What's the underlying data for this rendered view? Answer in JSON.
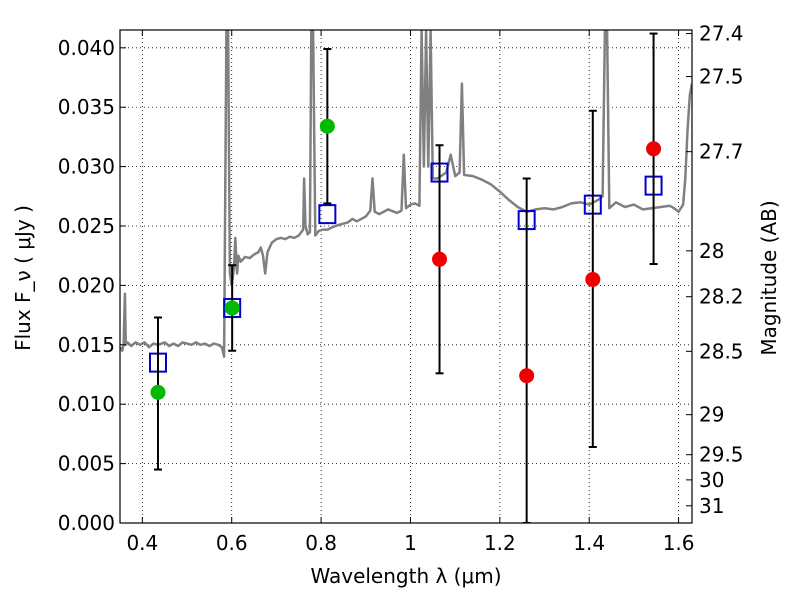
{
  "chart_data": {
    "type": "scatter",
    "xlabel": "Wavelength  λ (μm)",
    "ylabel_left": "Flux  F_ν  ( μJy )",
    "ylabel_right": "Magnitude (AB)",
    "xlim": [
      0.35,
      1.63
    ],
    "ylim": [
      0.0,
      0.0415
    ],
    "grid": true,
    "x_ticks": [
      {
        "v": 0.4,
        "label": "0.4"
      },
      {
        "v": 0.6,
        "label": "0.6"
      },
      {
        "v": 0.8,
        "label": "0.8"
      },
      {
        "v": 1.0,
        "label": "1"
      },
      {
        "v": 1.2,
        "label": "1.2"
      },
      {
        "v": 1.4,
        "label": "1.4"
      },
      {
        "v": 1.6,
        "label": "1.6"
      }
    ],
    "y_ticks": [
      {
        "v": 0.0,
        "label": "0.000"
      },
      {
        "v": 0.005,
        "label": "0.005"
      },
      {
        "v": 0.01,
        "label": "0.010"
      },
      {
        "v": 0.015,
        "label": "0.015"
      },
      {
        "v": 0.02,
        "label": "0.020"
      },
      {
        "v": 0.025,
        "label": "0.025"
      },
      {
        "v": 0.03,
        "label": "0.030"
      },
      {
        "v": 0.035,
        "label": "0.035"
      },
      {
        "v": 0.04,
        "label": "0.040"
      }
    ],
    "mag_ticks": [
      {
        "v": 0.0412,
        "label": "27.4"
      },
      {
        "v": 0.03758,
        "label": "27.5"
      },
      {
        "v": 0.03126,
        "label": "27.7"
      },
      {
        "v": 0.02291,
        "label": "28"
      },
      {
        "v": 0.01905,
        "label": "28.2"
      },
      {
        "v": 0.01445,
        "label": "28.5"
      },
      {
        "v": 0.00912,
        "label": "29"
      },
      {
        "v": 0.00575,
        "label": "29.5"
      },
      {
        "v": 0.00363,
        "label": "30"
      },
      {
        "v": 0.00145,
        "label": "31"
      }
    ],
    "series": [
      {
        "kind": "line",
        "color": "#808080",
        "points": [
          [
            0.352,
            0.0148
          ],
          [
            0.355,
            0.0145
          ],
          [
            0.358,
            0.015
          ],
          [
            0.361,
            0.0193
          ],
          [
            0.363,
            0.015
          ],
          [
            0.367,
            0.0152
          ],
          [
            0.375,
            0.0149
          ],
          [
            0.385,
            0.0152
          ],
          [
            0.395,
            0.015
          ],
          [
            0.405,
            0.0152
          ],
          [
            0.415,
            0.0148
          ],
          [
            0.425,
            0.0151
          ],
          [
            0.435,
            0.015
          ],
          [
            0.45,
            0.0152
          ],
          [
            0.46,
            0.0149
          ],
          [
            0.47,
            0.0151
          ],
          [
            0.48,
            0.0149
          ],
          [
            0.49,
            0.0152
          ],
          [
            0.5,
            0.0151
          ],
          [
            0.51,
            0.015
          ],
          [
            0.52,
            0.0152
          ],
          [
            0.53,
            0.015
          ],
          [
            0.54,
            0.0151
          ],
          [
            0.55,
            0.0149
          ],
          [
            0.56,
            0.0151
          ],
          [
            0.57,
            0.015
          ],
          [
            0.578,
            0.0148
          ],
          [
            0.583,
            0.014
          ],
          [
            0.588,
            0.0415
          ],
          [
            0.592,
            0.0415
          ],
          [
            0.596,
            0.021
          ],
          [
            0.6,
            0.02
          ],
          [
            0.605,
            0.0215
          ],
          [
            0.608,
            0.024
          ],
          [
            0.612,
            0.021
          ],
          [
            0.615,
            0.0225
          ],
          [
            0.62,
            0.022
          ],
          [
            0.63,
            0.0224
          ],
          [
            0.64,
            0.0223
          ],
          [
            0.65,
            0.0226
          ],
          [
            0.66,
            0.0228
          ],
          [
            0.665,
            0.0232
          ],
          [
            0.67,
            0.0225
          ],
          [
            0.675,
            0.021
          ],
          [
            0.68,
            0.0228
          ],
          [
            0.69,
            0.0236
          ],
          [
            0.7,
            0.0239
          ],
          [
            0.71,
            0.024
          ],
          [
            0.72,
            0.0239
          ],
          [
            0.73,
            0.0241
          ],
          [
            0.74,
            0.024
          ],
          [
            0.75,
            0.0242
          ],
          [
            0.76,
            0.0247
          ],
          [
            0.762,
            0.029
          ],
          [
            0.765,
            0.025
          ],
          [
            0.77,
            0.0243
          ],
          [
            0.775,
            0.0245
          ],
          [
            0.778,
            0.0415
          ],
          [
            0.782,
            0.0415
          ],
          [
            0.787,
            0.0242
          ],
          [
            0.795,
            0.0246
          ],
          [
            0.805,
            0.0247
          ],
          [
            0.815,
            0.0247
          ],
          [
            0.825,
            0.0249
          ],
          [
            0.84,
            0.0251
          ],
          [
            0.86,
            0.0253
          ],
          [
            0.87,
            0.0256
          ],
          [
            0.88,
            0.0254
          ],
          [
            0.9,
            0.0258
          ],
          [
            0.91,
            0.0263
          ],
          [
            0.915,
            0.029
          ],
          [
            0.92,
            0.0262
          ],
          [
            0.93,
            0.026
          ],
          [
            0.95,
            0.0264
          ],
          [
            0.97,
            0.0261
          ],
          [
            0.98,
            0.0263
          ],
          [
            0.985,
            0.031
          ],
          [
            0.99,
            0.0265
          ],
          [
            1.0,
            0.0268
          ],
          [
            1.01,
            0.0269
          ],
          [
            1.02,
            0.0267
          ],
          [
            1.025,
            0.0415
          ],
          [
            1.03,
            0.03
          ],
          [
            1.035,
            0.0415
          ],
          [
            1.04,
            0.03
          ],
          [
            1.045,
            0.0415
          ],
          [
            1.05,
            0.029
          ],
          [
            1.06,
            0.029
          ],
          [
            1.08,
            0.0295
          ],
          [
            1.09,
            0.031
          ],
          [
            1.1,
            0.0292
          ],
          [
            1.11,
            0.0295
          ],
          [
            1.115,
            0.037
          ],
          [
            1.12,
            0.0293
          ],
          [
            1.14,
            0.0292
          ],
          [
            1.16,
            0.0289
          ],
          [
            1.18,
            0.0285
          ],
          [
            1.2,
            0.0279
          ],
          [
            1.22,
            0.0272
          ],
          [
            1.24,
            0.0266
          ],
          [
            1.26,
            0.0262
          ],
          [
            1.28,
            0.0264
          ],
          [
            1.3,
            0.0265
          ],
          [
            1.32,
            0.0264
          ],
          [
            1.34,
            0.0266
          ],
          [
            1.36,
            0.0269
          ],
          [
            1.38,
            0.027
          ],
          [
            1.4,
            0.0268
          ],
          [
            1.42,
            0.0272
          ],
          [
            1.43,
            0.0275
          ],
          [
            1.435,
            0.0415
          ],
          [
            1.44,
            0.0415
          ],
          [
            1.445,
            0.0265
          ],
          [
            1.46,
            0.027
          ],
          [
            1.48,
            0.0266
          ],
          [
            1.5,
            0.0268
          ],
          [
            1.52,
            0.0264
          ],
          [
            1.54,
            0.0265
          ],
          [
            1.56,
            0.0266
          ],
          [
            1.58,
            0.0267
          ],
          [
            1.59,
            0.0265
          ],
          [
            1.6,
            0.0262
          ],
          [
            1.61,
            0.0268
          ],
          [
            1.615,
            0.029
          ],
          [
            1.62,
            0.033
          ],
          [
            1.625,
            0.036
          ],
          [
            1.63,
            0.037
          ]
        ]
      },
      {
        "kind": "open_square",
        "color": "#0000cc",
        "points": [
          [
            0.435,
            0.0135
          ],
          [
            0.601,
            0.0181
          ],
          [
            0.814,
            0.026
          ],
          [
            1.065,
            0.0295
          ],
          [
            1.26,
            0.0255
          ],
          [
            1.408,
            0.0268
          ],
          [
            1.544,
            0.0284
          ]
        ]
      },
      {
        "kind": "errorbar",
        "color": "#000000",
        "bars": [
          {
            "x": 0.435,
            "lo": 0.0045,
            "hi": 0.0173
          },
          {
            "x": 0.601,
            "lo": 0.0145,
            "hi": 0.0217
          },
          {
            "x": 0.814,
            "lo": 0.0269,
            "hi": 0.0399
          },
          {
            "x": 1.065,
            "lo": 0.0126,
            "hi": 0.0318
          },
          {
            "x": 1.26,
            "lo": 0.0,
            "hi": 0.029
          },
          {
            "x": 1.408,
            "lo": 0.0064,
            "hi": 0.0347
          },
          {
            "x": 1.544,
            "lo": 0.0218,
            "hi": 0.0412
          }
        ]
      },
      {
        "kind": "dot",
        "color": "#00bb00",
        "points": [
          [
            0.435,
            0.011
          ],
          [
            0.601,
            0.0181
          ],
          [
            0.814,
            0.0334
          ]
        ]
      },
      {
        "kind": "dot",
        "color": "#ee0000",
        "points": [
          [
            1.065,
            0.0222
          ],
          [
            1.26,
            0.0124
          ],
          [
            1.408,
            0.0205
          ],
          [
            1.544,
            0.0315
          ]
        ]
      }
    ]
  }
}
